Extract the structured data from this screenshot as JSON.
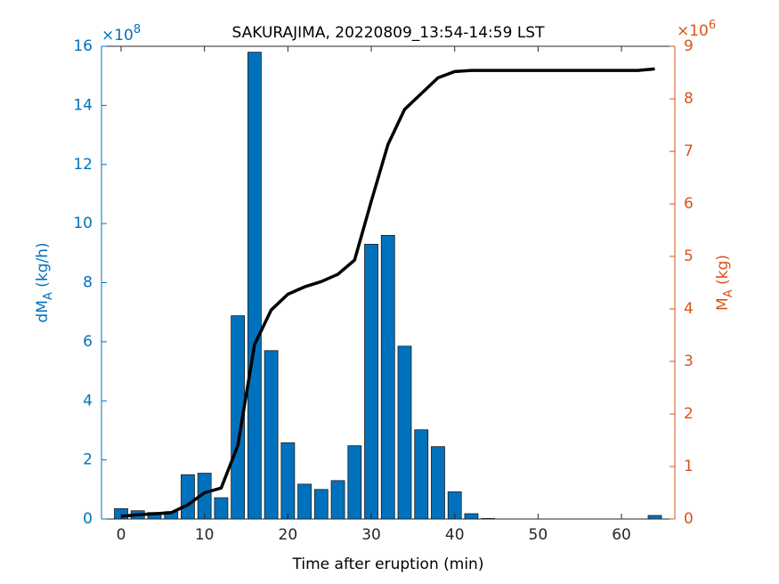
{
  "chart_data": {
    "type": "bar_line_dual_axis",
    "title": "SAKURAJIMA, 20220809_13:54-14:59 LST",
    "xlabel": "Time after eruption (min)",
    "ylabel": {
      "base": "dM",
      "sub": "A",
      "unit": " (kg/h)"
    },
    "y2label": {
      "base": "M",
      "sub": "A",
      "unit": " (kg)"
    },
    "y_multiplier": {
      "base": "×10",
      "exponent": "8"
    },
    "y2_multiplier": {
      "base": "×10",
      "exponent": "6"
    },
    "x": [
      0,
      2,
      4,
      6,
      8,
      10,
      12,
      14,
      16,
      18,
      20,
      22,
      24,
      26,
      28,
      30,
      32,
      34,
      36,
      38,
      40,
      42,
      44,
      46,
      48,
      50,
      52,
      54,
      56,
      58,
      60,
      62,
      64
    ],
    "series": [
      {
        "type": "bar",
        "axis": "y",
        "color": "#0072BD",
        "values": [
          0.35,
          0.28,
          0.22,
          0.25,
          1.5,
          1.55,
          0.72,
          6.88,
          15.8,
          5.7,
          2.58,
          1.18,
          1.0,
          1.3,
          2.48,
          9.3,
          9.6,
          5.85,
          3.02,
          2.45,
          0.92,
          0.18,
          0.02,
          0,
          0,
          0,
          0,
          0,
          0,
          0,
          0,
          0,
          0.12
        ]
      },
      {
        "type": "line",
        "axis": "y2",
        "color": "#000000",
        "values": [
          0.05,
          0.08,
          0.1,
          0.12,
          0.27,
          0.5,
          0.59,
          1.4,
          3.32,
          3.98,
          4.28,
          4.42,
          4.52,
          4.66,
          4.93,
          6.05,
          7.13,
          7.8,
          8.1,
          8.4,
          8.52,
          8.54,
          8.54,
          8.54,
          8.54,
          8.54,
          8.54,
          8.54,
          8.54,
          8.54,
          8.54,
          8.54,
          8.57
        ]
      }
    ],
    "y_color": "#0072BD",
    "y2_color": "#D95319",
    "xlim": [
      -2.35,
      66.4
    ],
    "xticks": [
      0,
      10,
      20,
      30,
      40,
      50,
      60
    ],
    "ylim": [
      0,
      16
    ],
    "yticks": [
      0,
      2,
      4,
      6,
      8,
      10,
      12,
      14,
      16
    ],
    "y2lim": [
      0,
      9
    ],
    "y2ticks": [
      0,
      1,
      2,
      3,
      4,
      5,
      6,
      7,
      8,
      9
    ]
  }
}
